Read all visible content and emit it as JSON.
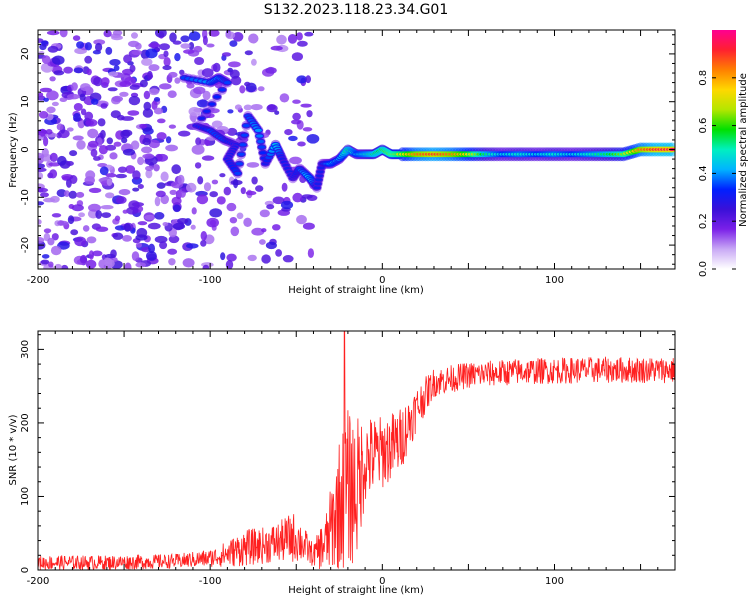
{
  "title": "S132.2023.118.23.34.G01",
  "chart_data": [
    {
      "type": "heatmap",
      "xlabel": "Height of straight line (km)",
      "ylabel": "Frequency (Hz)",
      "xlim": [
        -200,
        170
      ],
      "ylim": [
        -25,
        25
      ],
      "x_ticks": [
        -200,
        -100,
        0,
        100
      ],
      "y_ticks": [
        -20,
        -10,
        0,
        10,
        20
      ],
      "colorbar": {
        "label": "Normalized spectral amplitude",
        "range": [
          0,
          1
        ],
        "ticks": [
          "0.0",
          "0.2",
          "0.4",
          "0.6",
          "0.8"
        ],
        "colors": [
          "#ffffff",
          "#c9a9f5",
          "#7a20e8",
          "#3a10d8",
          "#0020ff",
          "#00b4ff",
          "#00f0c0",
          "#00e000",
          "#b4e600",
          "#ffd800",
          "#ff8000",
          "#ff2030",
          "#ff0090"
        ]
      },
      "ridge": [
        {
          "x": -115,
          "y": 15,
          "a": 0.35
        },
        {
          "x": -100,
          "y": 14,
          "a": 0.4
        },
        {
          "x": -95,
          "y": 15,
          "a": 0.4
        },
        {
          "x": -90,
          "y": 14,
          "a": 0.35
        },
        {
          "x": -108,
          "y": 5,
          "a": 0.3
        },
        {
          "x": -100,
          "y": 4,
          "a": 0.35
        },
        {
          "x": -92,
          "y": 2,
          "a": 0.35
        },
        {
          "x": -85,
          "y": 1,
          "a": 0.3
        },
        {
          "x": -90,
          "y": -2,
          "a": 0.3
        },
        {
          "x": -84,
          "y": -5,
          "a": 0.35
        },
        {
          "x": -78,
          "y": 7,
          "a": 0.35
        },
        {
          "x": -72,
          "y": 4,
          "a": 0.4
        },
        {
          "x": -68,
          "y": -3,
          "a": 0.3
        },
        {
          "x": -62,
          "y": 1,
          "a": 0.45
        },
        {
          "x": -58,
          "y": -2,
          "a": 0.3
        },
        {
          "x": -52,
          "y": -6,
          "a": 0.3
        },
        {
          "x": -48,
          "y": -4,
          "a": 0.35
        },
        {
          "x": -42,
          "y": -6,
          "a": 0.45
        },
        {
          "x": -38,
          "y": -8,
          "a": 0.3
        },
        {
          "x": -35,
          "y": -3,
          "a": 0.3
        },
        {
          "x": -30,
          "y": -3,
          "a": 0.45
        },
        {
          "x": -25,
          "y": -2,
          "a": 0.4
        },
        {
          "x": -20,
          "y": 0,
          "a": 0.55
        },
        {
          "x": -15,
          "y": -1,
          "a": 0.45
        },
        {
          "x": -10,
          "y": -1,
          "a": 0.5
        },
        {
          "x": -5,
          "y": -1,
          "a": 0.55
        },
        {
          "x": 0,
          "y": 0,
          "a": 0.6
        },
        {
          "x": 5,
          "y": -1,
          "a": 0.65
        },
        {
          "x": 10,
          "y": -1,
          "a": 0.7
        },
        {
          "x": 20,
          "y": -1,
          "a": 0.85
        },
        {
          "x": 30,
          "y": -1,
          "a": 0.9
        },
        {
          "x": 40,
          "y": -1,
          "a": 0.85
        },
        {
          "x": 50,
          "y": -1,
          "a": 0.75
        },
        {
          "x": 60,
          "y": -1,
          "a": 0.55
        },
        {
          "x": 70,
          "y": -1,
          "a": 0.45
        },
        {
          "x": 80,
          "y": -1,
          "a": 0.5
        },
        {
          "x": 90,
          "y": -1,
          "a": 0.45
        },
        {
          "x": 100,
          "y": -1,
          "a": 0.5
        },
        {
          "x": 110,
          "y": -1,
          "a": 0.45
        },
        {
          "x": 120,
          "y": -1,
          "a": 0.5
        },
        {
          "x": 130,
          "y": -1,
          "a": 0.55
        },
        {
          "x": 140,
          "y": -1,
          "a": 0.65
        },
        {
          "x": 150,
          "y": 0,
          "a": 0.85
        },
        {
          "x": 160,
          "y": 0,
          "a": 0.95
        },
        {
          "x": 170,
          "y": 0,
          "a": 0.95
        }
      ],
      "noise_region": {
        "x_min": -200,
        "x_max": -40,
        "y_min": -25,
        "y_max": 25
      }
    },
    {
      "type": "line",
      "xlabel": "Height of straight line (km)",
      "ylabel": "SNR (10 * v/v)",
      "xlim": [
        -200,
        170
      ],
      "ylim": [
        0,
        325
      ],
      "x_ticks": [
        -200,
        -100,
        0,
        100
      ],
      "y_ticks": [
        0,
        100,
        200,
        300
      ],
      "series": [
        {
          "color": "#ff2020",
          "envelope": [
            {
              "x": -200,
              "mean": 10,
              "spread": 10
            },
            {
              "x": -160,
              "mean": 10,
              "spread": 10
            },
            {
              "x": -120,
              "mean": 12,
              "spread": 10
            },
            {
              "x": -100,
              "mean": 16,
              "spread": 12
            },
            {
              "x": -90,
              "mean": 22,
              "spread": 18
            },
            {
              "x": -80,
              "mean": 30,
              "spread": 25
            },
            {
              "x": -70,
              "mean": 33,
              "spread": 25
            },
            {
              "x": -60,
              "mean": 38,
              "spread": 28
            },
            {
              "x": -52,
              "mean": 45,
              "spread": 35
            },
            {
              "x": -48,
              "mean": 40,
              "spread": 30
            },
            {
              "x": -40,
              "mean": 20,
              "spread": 15
            },
            {
              "x": -32,
              "mean": 40,
              "spread": 45
            },
            {
              "x": -25,
              "mean": 90,
              "spread": 90
            },
            {
              "x": -20,
              "mean": 110,
              "spread": 110
            },
            {
              "x": -15,
              "mean": 110,
              "spread": 100
            },
            {
              "x": -10,
              "mean": 150,
              "spread": 60
            },
            {
              "x": 0,
              "mean": 160,
              "spread": 50
            },
            {
              "x": 10,
              "mean": 175,
              "spread": 45
            },
            {
              "x": 20,
              "mean": 220,
              "spread": 30
            },
            {
              "x": 30,
              "mean": 255,
              "spread": 20
            },
            {
              "x": 50,
              "mean": 265,
              "spread": 18
            },
            {
              "x": 80,
              "mean": 270,
              "spread": 18
            },
            {
              "x": 120,
              "mean": 272,
              "spread": 18
            },
            {
              "x": 170,
              "mean": 272,
              "spread": 18
            }
          ],
          "peak": {
            "x": -22,
            "y": 325
          }
        }
      ]
    }
  ]
}
